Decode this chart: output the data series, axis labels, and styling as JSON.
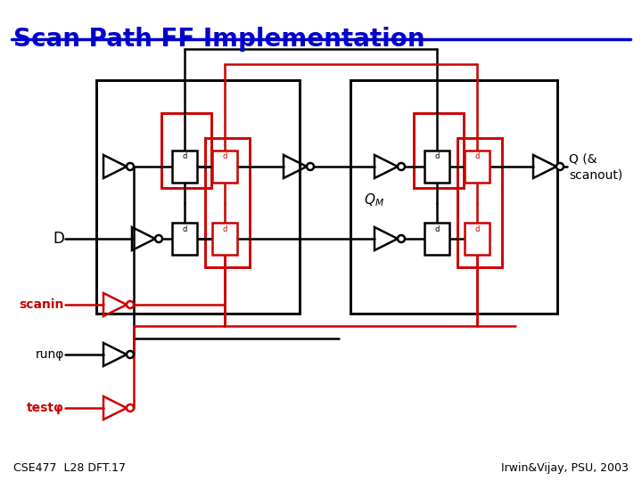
{
  "title": "Scan Path FF Implementation",
  "title_color": "#0000CC",
  "title_fontsize": 20,
  "bg_color": "#FFFFFF",
  "footer_left": "CSE477  L28 DFT.17",
  "footer_right": "Irwin&Vijay, PSU, 2003",
  "footer_fontsize": 9,
  "label_D": "D",
  "label_scanin": "scanin",
  "label_run": "runφ",
  "label_test": "testφ",
  "black": "#000000",
  "red": "#CC0000",
  "line_width": 1.8
}
